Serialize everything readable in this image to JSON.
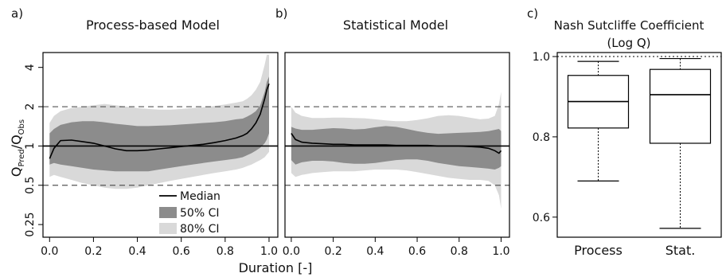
{
  "figure": {
    "panel_labels": [
      "a)",
      "b)",
      "c)"
    ],
    "shared_xlabel": "Duration [-]",
    "shared_ylabel": {
      "q": "Q",
      "pred_sub": "Pred",
      "slash": "/Q",
      "obs_sub": "Obs"
    }
  },
  "colors": {
    "ci50": "#8c8c8c",
    "ci80": "#d9d9d9",
    "median": "#000000",
    "refline": "#555555"
  },
  "legend": {
    "median": "Median",
    "ci50": "50% CI",
    "ci80": "80% CI"
  },
  "chart_data": [
    {
      "panel": "a",
      "type": "area",
      "title": "Process-based Model",
      "xlabel": "Duration [-]",
      "ylabel": "Q_Pred/Q_Obs",
      "yscale": "log2",
      "xlim": [
        -0.03,
        1.04
      ],
      "ylim": [
        0.2,
        5.2
      ],
      "xticks": [
        "0.0",
        "0.2",
        "0.4",
        "0.6",
        "0.8",
        "1.0"
      ],
      "yticks": [
        "0.25",
        "0.5",
        "1",
        "2",
        "4"
      ],
      "ref_lines": [
        {
          "y": 0.5,
          "style": "dashed"
        },
        {
          "y": 1,
          "style": "solid"
        },
        {
          "y": 2,
          "style": "dashed"
        }
      ],
      "x": [
        0.0,
        0.02,
        0.05,
        0.1,
        0.15,
        0.2,
        0.25,
        0.3,
        0.35,
        0.4,
        0.45,
        0.5,
        0.55,
        0.6,
        0.65,
        0.7,
        0.75,
        0.8,
        0.85,
        0.88,
        0.9,
        0.92,
        0.94,
        0.96,
        0.98,
        0.99,
        1.0
      ],
      "median": [
        0.8,
        0.96,
        1.1,
        1.11,
        1.08,
        1.05,
        1.0,
        0.95,
        0.92,
        0.92,
        0.93,
        0.95,
        0.97,
        0.99,
        1.01,
        1.03,
        1.06,
        1.1,
        1.15,
        1.2,
        1.25,
        1.35,
        1.5,
        1.75,
        2.3,
        2.7,
        3.0
      ],
      "ci50_lo": [
        0.72,
        0.74,
        0.72,
        0.7,
        0.68,
        0.66,
        0.65,
        0.64,
        0.64,
        0.64,
        0.64,
        0.66,
        0.68,
        0.7,
        0.72,
        0.74,
        0.76,
        0.78,
        0.8,
        0.82,
        0.85,
        0.88,
        0.92,
        0.97,
        1.05,
        1.12,
        1.25
      ],
      "ci50_hi": [
        1.25,
        1.35,
        1.45,
        1.52,
        1.55,
        1.55,
        1.52,
        1.48,
        1.45,
        1.42,
        1.42,
        1.43,
        1.44,
        1.46,
        1.48,
        1.5,
        1.52,
        1.55,
        1.6,
        1.62,
        1.68,
        1.75,
        1.85,
        2.05,
        2.6,
        3.1,
        3.4
      ],
      "ci80_lo": [
        0.58,
        0.6,
        0.58,
        0.55,
        0.52,
        0.5,
        0.48,
        0.47,
        0.47,
        0.48,
        0.5,
        0.52,
        0.54,
        0.56,
        0.58,
        0.6,
        0.62,
        0.64,
        0.66,
        0.68,
        0.7,
        0.72,
        0.75,
        0.78,
        0.82,
        0.86,
        0.9
      ],
      "ci80_hi": [
        1.5,
        1.7,
        1.85,
        1.95,
        2.0,
        2.05,
        2.1,
        2.05,
        2.0,
        1.95,
        1.92,
        1.9,
        1.9,
        1.92,
        1.95,
        1.98,
        2.02,
        2.08,
        2.15,
        2.2,
        2.3,
        2.45,
        2.7,
        3.1,
        4.2,
        5.0,
        5.0
      ]
    },
    {
      "panel": "b",
      "type": "area",
      "title": "Statistical Model",
      "xlabel": "Duration [-]",
      "ylabel": "",
      "yscale": "log2",
      "xlim": [
        -0.03,
        1.04
      ],
      "ylim": [
        0.2,
        5.2
      ],
      "xticks": [
        "0.0",
        "0.2",
        "0.4",
        "0.6",
        "0.8",
        "1.0"
      ],
      "ref_lines": [
        {
          "y": 0.5,
          "style": "dashed"
        },
        {
          "y": 1,
          "style": "solid"
        },
        {
          "y": 2,
          "style": "dashed"
        }
      ],
      "x": [
        0.0,
        0.02,
        0.05,
        0.1,
        0.15,
        0.2,
        0.25,
        0.3,
        0.35,
        0.4,
        0.45,
        0.5,
        0.55,
        0.6,
        0.65,
        0.7,
        0.75,
        0.8,
        0.85,
        0.9,
        0.94,
        0.97,
        0.99,
        1.0
      ],
      "median": [
        1.25,
        1.12,
        1.07,
        1.05,
        1.04,
        1.03,
        1.03,
        1.02,
        1.02,
        1.02,
        1.02,
        1.01,
        1.01,
        1.01,
        1.01,
        1.0,
        1.0,
        1.0,
        0.99,
        0.98,
        0.96,
        0.92,
        0.88,
        0.92
      ],
      "ci50_lo": [
        0.78,
        0.72,
        0.75,
        0.77,
        0.77,
        0.76,
        0.74,
        0.73,
        0.73,
        0.74,
        0.76,
        0.78,
        0.79,
        0.79,
        0.77,
        0.74,
        0.72,
        0.7,
        0.69,
        0.68,
        0.67,
        0.66,
        0.68,
        0.7
      ],
      "ci50_hi": [
        1.4,
        1.36,
        1.33,
        1.33,
        1.35,
        1.37,
        1.36,
        1.34,
        1.35,
        1.39,
        1.42,
        1.4,
        1.35,
        1.3,
        1.26,
        1.24,
        1.25,
        1.26,
        1.27,
        1.28,
        1.3,
        1.33,
        1.35,
        1.3
      ],
      "ci80_lo": [
        0.62,
        0.58,
        0.6,
        0.62,
        0.63,
        0.64,
        0.64,
        0.64,
        0.65,
        0.66,
        0.66,
        0.66,
        0.65,
        0.63,
        0.61,
        0.59,
        0.57,
        0.56,
        0.55,
        0.55,
        0.54,
        0.5,
        0.42,
        0.33
      ],
      "ci80_hi": [
        2.0,
        1.8,
        1.7,
        1.64,
        1.64,
        1.65,
        1.65,
        1.64,
        1.63,
        1.6,
        1.57,
        1.55,
        1.55,
        1.58,
        1.63,
        1.7,
        1.72,
        1.7,
        1.65,
        1.6,
        1.62,
        1.7,
        2.1,
        2.6
      ]
    },
    {
      "panel": "c",
      "type": "box",
      "title": "Nash Sutcliffe Coefficient",
      "subtitle": "(Log Q)",
      "ylim": [
        0.55,
        1.01
      ],
      "yticks": [
        "0.6",
        "0.8",
        "1.0"
      ],
      "ref_lines": [
        {
          "y": 1.0,
          "style": "dotted"
        }
      ],
      "categories": [
        "Process",
        "Stat."
      ],
      "boxes": [
        {
          "name": "Process",
          "whisker_low": 0.69,
          "q1": 0.822,
          "median": 0.888,
          "q3": 0.953,
          "whisker_high": 0.988
        },
        {
          "name": "Stat.",
          "whisker_low": 0.572,
          "q1": 0.784,
          "median": 0.905,
          "q3": 0.968,
          "whisker_high": 0.995
        }
      ]
    }
  ]
}
